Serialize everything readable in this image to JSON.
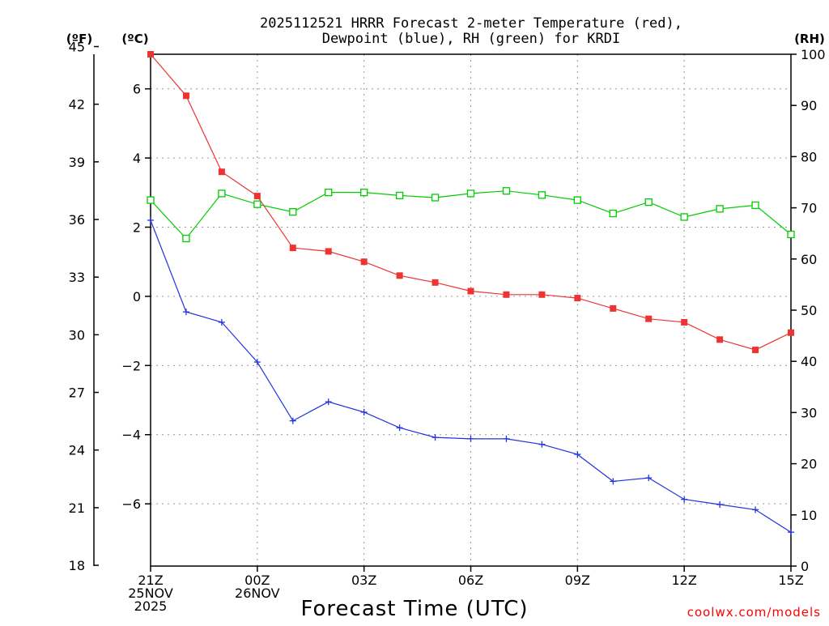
{
  "chart_data": {
    "type": "line",
    "title_line1": "2025112521 HRRR Forecast 2-meter Temperature (red),",
    "title_line2": "Dewpoint (blue), RH (green) for KRDI",
    "xlabel": "Forecast Time (UTC)",
    "credit": "coolwx.com/models",
    "units": {
      "fahrenheit": "(ºF)",
      "celsius": "(ºC)",
      "rh": "(RH)"
    },
    "x_hours": [
      0,
      1,
      2,
      3,
      4,
      5,
      6,
      7,
      8,
      9,
      10,
      11,
      12,
      13,
      14,
      15,
      16,
      17,
      18
    ],
    "x_tick_labels": [
      {
        "hour": 0,
        "lines": [
          "21Z",
          "25NOV",
          "2025"
        ]
      },
      {
        "hour": 3,
        "lines": [
          "00Z",
          "26NOV"
        ]
      },
      {
        "hour": 6,
        "lines": [
          "03Z"
        ]
      },
      {
        "hour": 9,
        "lines": [
          "06Z"
        ]
      },
      {
        "hour": 12,
        "lines": [
          "09Z"
        ]
      },
      {
        "hour": 15,
        "lines": [
          "12Z"
        ]
      },
      {
        "hour": 18,
        "lines": [
          "15Z"
        ]
      }
    ],
    "celsius_range": [
      -7.8,
      7.0
    ],
    "celsius_ticks": [
      6,
      4,
      2,
      0,
      -2,
      -4,
      -6
    ],
    "fahrenheit_ticks": [
      45,
      42,
      39,
      36,
      33,
      30,
      27,
      24,
      21,
      18
    ],
    "rh_range": [
      0,
      100
    ],
    "rh_ticks": [
      0,
      10,
      20,
      30,
      40,
      50,
      60,
      70,
      80,
      90,
      100
    ],
    "series": [
      {
        "name": "Temperature",
        "color": "#ee3333",
        "marker": "filled-square",
        "axis": "celsius",
        "values": [
          7.0,
          5.8,
          3.6,
          2.9,
          1.4,
          1.3,
          1.0,
          0.6,
          0.4,
          0.15,
          0.05,
          0.05,
          -0.05,
          -0.35,
          -0.65,
          -0.75,
          -1.25,
          -1.55,
          -1.05
        ]
      },
      {
        "name": "Dewpoint",
        "color": "#2233dd",
        "marker": "plus",
        "axis": "celsius",
        "values": [
          2.2,
          -0.45,
          -0.75,
          -1.9,
          -3.6,
          -3.05,
          -3.35,
          -3.8,
          -4.08,
          -4.12,
          -4.12,
          -4.28,
          -4.57,
          -5.35,
          -5.25,
          -5.87,
          -6.02,
          -6.17,
          -6.82
        ]
      },
      {
        "name": "RH",
        "color": "#00cc00",
        "marker": "hollow-square",
        "axis": "rh",
        "values": [
          71.5,
          64.0,
          72.8,
          70.7,
          69.2,
          73.0,
          73.0,
          72.4,
          72.0,
          72.8,
          73.3,
          72.5,
          71.5,
          68.9,
          71.1,
          68.2,
          69.8,
          70.5,
          64.8
        ]
      }
    ]
  }
}
